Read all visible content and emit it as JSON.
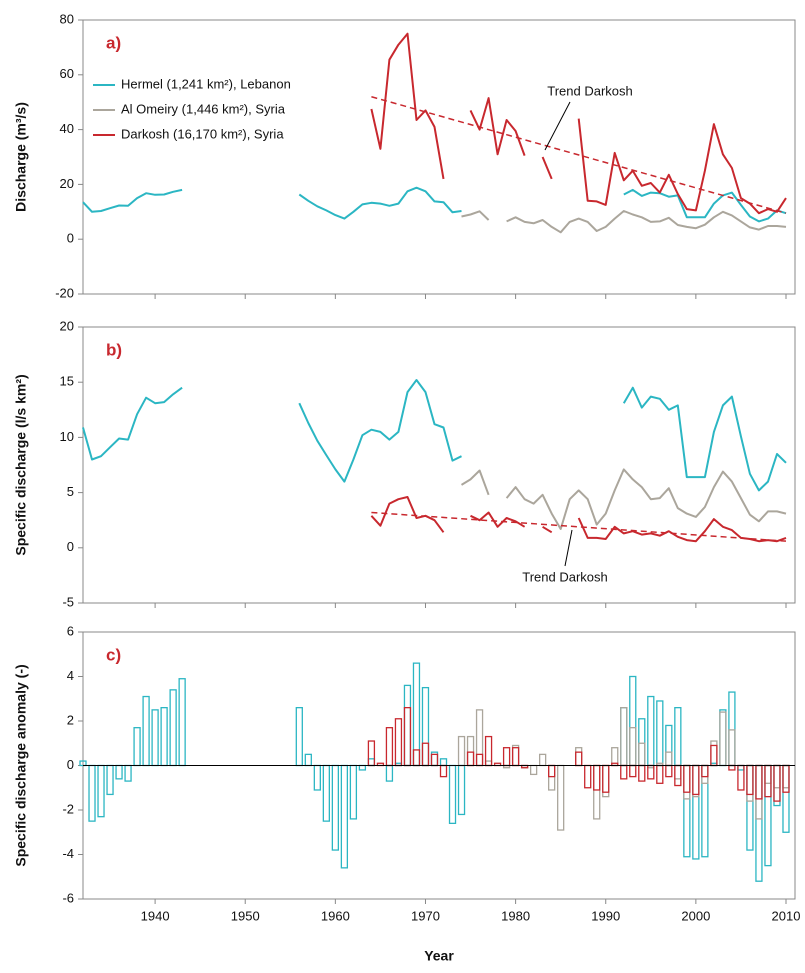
{
  "chart_data": [
    {
      "type": "line",
      "panel": "a)",
      "ylabel": "Discharge (m³/s)",
      "xlim": [
        1932,
        2011
      ],
      "xticks": [
        1940,
        1950,
        1960,
        1970,
        1980,
        1990,
        2000,
        2010
      ],
      "ylim": [
        -20,
        80
      ],
      "yticks": [
        -20,
        0,
        20,
        40,
        60,
        80
      ],
      "x": [
        1932,
        1933,
        1934,
        1935,
        1936,
        1937,
        1938,
        1939,
        1940,
        1941,
        1942,
        1943,
        1944,
        1945,
        1946,
        1947,
        1948,
        1949,
        1950,
        1951,
        1952,
        1953,
        1954,
        1955,
        1956,
        1957,
        1958,
        1959,
        1960,
        1961,
        1962,
        1963,
        1964,
        1965,
        1966,
        1967,
        1968,
        1969,
        1970,
        1971,
        1972,
        1973,
        1974,
        1975,
        1976,
        1977,
        1978,
        1979,
        1980,
        1981,
        1982,
        1983,
        1984,
        1985,
        1986,
        1987,
        1988,
        1989,
        1990,
        1991,
        1992,
        1993,
        1994,
        1995,
        1996,
        1997,
        1998,
        1999,
        2000,
        2001,
        2002,
        2003,
        2004,
        2005,
        2006,
        2007,
        2008,
        2009,
        2010
      ],
      "series": [
        {
          "name": "Hermel (1,241 km²), Lebanon",
          "color": "#2bb6c3",
          "values": [
            13.5,
            10,
            10.3,
            11.3,
            12.3,
            12.2,
            15,
            16.8,
            16.2,
            16.3,
            17.3,
            18,
            null,
            null,
            null,
            null,
            null,
            null,
            null,
            null,
            null,
            null,
            null,
            null,
            16.3,
            14,
            12,
            10.5,
            8.8,
            7.5,
            10,
            12.7,
            13.3,
            13,
            12.2,
            13,
            17.5,
            18.8,
            17.5,
            13.8,
            13.5,
            9.8,
            10.3,
            null,
            null,
            null,
            null,
            null,
            null,
            null,
            null,
            null,
            null,
            null,
            null,
            null,
            null,
            null,
            null,
            null,
            16.3,
            18,
            15.8,
            17,
            16.8,
            15.5,
            16,
            8,
            8,
            8,
            13,
            16,
            17,
            12.5,
            8.3,
            6.5,
            7.5,
            10.5,
            9.5
          ]
        },
        {
          "name": "Al Omeiry (1,446 km²), Syria",
          "color": "#aba69c",
          "values": [
            null,
            null,
            null,
            null,
            null,
            null,
            null,
            null,
            null,
            null,
            null,
            null,
            null,
            null,
            null,
            null,
            null,
            null,
            null,
            null,
            null,
            null,
            null,
            null,
            null,
            null,
            null,
            null,
            null,
            null,
            null,
            null,
            null,
            null,
            null,
            null,
            null,
            null,
            null,
            null,
            null,
            null,
            8.3,
            9,
            10.2,
            7,
            null,
            6.5,
            8,
            6.3,
            5.8,
            7,
            4.5,
            2.5,
            6.3,
            7.5,
            6.3,
            3,
            4.5,
            7.5,
            10.3,
            9,
            8,
            6.3,
            6.5,
            7.8,
            5.2,
            4.5,
            4,
            5.3,
            8,
            10,
            8.7,
            6.5,
            4.3,
            3.5,
            4.8,
            4.8,
            4.5
          ]
        },
        {
          "name": "Darkosh (16,170 km²), Syria",
          "color": "#c8282e",
          "values": [
            null,
            null,
            null,
            null,
            null,
            null,
            null,
            null,
            null,
            null,
            null,
            null,
            null,
            null,
            null,
            null,
            null,
            null,
            null,
            null,
            null,
            null,
            null,
            null,
            null,
            null,
            null,
            null,
            null,
            null,
            null,
            null,
            47.5,
            33,
            65.5,
            71,
            75,
            43.5,
            47,
            41,
            22,
            null,
            null,
            47,
            40,
            51.5,
            31,
            43.5,
            39.5,
            30.5,
            null,
            30,
            22,
            null,
            null,
            44,
            14,
            13.8,
            12.5,
            31.5,
            21.5,
            25,
            19.5,
            20.5,
            17,
            23.5,
            16.5,
            11,
            10.5,
            25,
            42,
            31,
            26,
            15,
            13,
            9.5,
            11,
            10,
            15
          ]
        }
      ],
      "trend": {
        "x": [
          1964,
          2010
        ],
        "values": [
          52,
          9.5
        ],
        "color": "#c8282e"
      },
      "annotation": "Trend Darkosh"
    },
    {
      "type": "line",
      "panel": "b)",
      "ylabel": "Specific discharge (l/s km²)",
      "xlim": [
        1932,
        2011
      ],
      "xticks": [
        1940,
        1950,
        1960,
        1970,
        1980,
        1990,
        2000,
        2010
      ],
      "ylim": [
        -5,
        20
      ],
      "yticks": [
        -5,
        0,
        5,
        10,
        15,
        20
      ],
      "x": [
        1932,
        1933,
        1934,
        1935,
        1936,
        1937,
        1938,
        1939,
        1940,
        1941,
        1942,
        1943,
        1944,
        1945,
        1946,
        1947,
        1948,
        1949,
        1950,
        1951,
        1952,
        1953,
        1954,
        1955,
        1956,
        1957,
        1958,
        1959,
        1960,
        1961,
        1962,
        1963,
        1964,
        1965,
        1966,
        1967,
        1968,
        1969,
        1970,
        1971,
        1972,
        1973,
        1974,
        1975,
        1976,
        1977,
        1978,
        1979,
        1980,
        1981,
        1982,
        1983,
        1984,
        1985,
        1986,
        1987,
        1988,
        1989,
        1990,
        1991,
        1992,
        1993,
        1994,
        1995,
        1996,
        1997,
        1998,
        1999,
        2000,
        2001,
        2002,
        2003,
        2004,
        2005,
        2006,
        2007,
        2008,
        2009,
        2010
      ],
      "series": [
        {
          "color": "#2bb6c3",
          "values": [
            10.9,
            8,
            8.3,
            9.1,
            9.9,
            9.8,
            12.1,
            13.6,
            13.1,
            13.2,
            13.9,
            14.5,
            null,
            null,
            null,
            null,
            null,
            null,
            null,
            null,
            null,
            null,
            null,
            null,
            13.1,
            11.3,
            9.7,
            8.4,
            7.1,
            6,
            8,
            10.2,
            10.7,
            10.5,
            9.8,
            10.5,
            14.1,
            15.2,
            14.1,
            11.2,
            10.9,
            7.9,
            8.3,
            null,
            null,
            null,
            null,
            null,
            null,
            null,
            null,
            null,
            null,
            null,
            null,
            null,
            null,
            null,
            null,
            null,
            13.1,
            14.5,
            12.7,
            13.7,
            13.5,
            12.5,
            12.9,
            6.4,
            6.4,
            6.4,
            10.5,
            12.9,
            13.7,
            10.1,
            6.7,
            5.2,
            6,
            8.5,
            7.7
          ]
        },
        {
          "color": "#aba69c",
          "values": [
            null,
            null,
            null,
            null,
            null,
            null,
            null,
            null,
            null,
            null,
            null,
            null,
            null,
            null,
            null,
            null,
            null,
            null,
            null,
            null,
            null,
            null,
            null,
            null,
            null,
            null,
            null,
            null,
            null,
            null,
            null,
            null,
            null,
            null,
            null,
            null,
            null,
            null,
            null,
            null,
            null,
            null,
            5.7,
            6.2,
            7,
            4.8,
            null,
            4.5,
            5.5,
            4.4,
            4,
            4.8,
            3.1,
            1.7,
            4.4,
            5.2,
            4.4,
            2.1,
            3.1,
            5.2,
            7.1,
            6.2,
            5.5,
            4.4,
            4.5,
            5.4,
            3.6,
            3.1,
            2.8,
            3.7,
            5.5,
            6.9,
            6,
            4.5,
            3,
            2.4,
            3.3,
            3.3,
            3.1
          ]
        },
        {
          "color": "#c8282e",
          "values": [
            null,
            null,
            null,
            null,
            null,
            null,
            null,
            null,
            null,
            null,
            null,
            null,
            null,
            null,
            null,
            null,
            null,
            null,
            null,
            null,
            null,
            null,
            null,
            null,
            null,
            null,
            null,
            null,
            null,
            null,
            null,
            null,
            2.9,
            2,
            4,
            4.4,
            4.6,
            2.7,
            2.9,
            2.5,
            1.4,
            null,
            null,
            2.9,
            2.5,
            3.2,
            1.9,
            2.7,
            2.4,
            1.9,
            null,
            1.9,
            1.4,
            null,
            null,
            2.7,
            0.9,
            0.9,
            0.8,
            1.9,
            1.3,
            1.5,
            1.2,
            1.3,
            1.1,
            1.5,
            1,
            0.7,
            0.6,
            1.5,
            2.6,
            1.9,
            1.6,
            0.9,
            0.8,
            0.6,
            0.7,
            0.6,
            0.9
          ]
        }
      ],
      "trend": {
        "x": [
          1964,
          2010
        ],
        "values": [
          3.2,
          0.6
        ],
        "color": "#c8282e"
      },
      "annotation": "Trend Darkosh"
    },
    {
      "type": "bar",
      "panel": "c)",
      "ylabel": "Specific discharge anomaly (-)",
      "xlabel": "Year",
      "xlim": [
        1932,
        2011
      ],
      "xticks": [
        1940,
        1950,
        1960,
        1970,
        1980,
        1990,
        2000,
        2010
      ],
      "ylim": [
        -6,
        6
      ],
      "yticks": [
        -6,
        -4,
        -2,
        0,
        2,
        4,
        6
      ],
      "x": [
        1932,
        1933,
        1934,
        1935,
        1936,
        1937,
        1938,
        1939,
        1940,
        1941,
        1942,
        1943,
        1944,
        1945,
        1946,
        1947,
        1948,
        1949,
        1950,
        1951,
        1952,
        1953,
        1954,
        1955,
        1956,
        1957,
        1958,
        1959,
        1960,
        1961,
        1962,
        1963,
        1964,
        1965,
        1966,
        1967,
        1968,
        1969,
        1970,
        1971,
        1972,
        1973,
        1974,
        1975,
        1976,
        1977,
        1978,
        1979,
        1980,
        1981,
        1982,
        1983,
        1984,
        1985,
        1986,
        1987,
        1988,
        1989,
        1990,
        1991,
        1992,
        1993,
        1994,
        1995,
        1996,
        1997,
        1998,
        1999,
        2000,
        2001,
        2002,
        2003,
        2004,
        2005,
        2006,
        2007,
        2008,
        2009,
        2010
      ],
      "series": [
        {
          "color": "#2bb6c3",
          "values": [
            0.2,
            -2.5,
            -2.3,
            -1.3,
            -0.6,
            -0.7,
            1.7,
            3.1,
            2.5,
            2.6,
            3.4,
            3.9,
            null,
            null,
            null,
            null,
            null,
            null,
            null,
            null,
            null,
            null,
            null,
            null,
            2.6,
            0.5,
            -1.1,
            -2.5,
            -3.8,
            -4.6,
            -2.4,
            -0.2,
            0.3,
            0,
            -0.7,
            0.1,
            3.6,
            4.6,
            3.5,
            0.6,
            0.3,
            -2.6,
            -2.2,
            null,
            null,
            null,
            null,
            null,
            null,
            null,
            null,
            null,
            null,
            null,
            null,
            null,
            null,
            null,
            null,
            null,
            2.6,
            4,
            2.1,
            3.1,
            2.9,
            1.8,
            2.6,
            -4.1,
            -4.2,
            -4.1,
            0.1,
            2.5,
            3.3,
            -0.2,
            -3.8,
            -5.2,
            -4.5,
            -1.8,
            -3
          ]
        },
        {
          "color": "#aba69c",
          "values": [
            null,
            null,
            null,
            null,
            null,
            null,
            null,
            null,
            null,
            null,
            null,
            null,
            null,
            null,
            null,
            null,
            null,
            null,
            null,
            null,
            null,
            null,
            null,
            null,
            null,
            null,
            null,
            null,
            null,
            null,
            null,
            null,
            null,
            null,
            null,
            null,
            null,
            null,
            null,
            null,
            null,
            null,
            1.3,
            1.3,
            2.5,
            0.2,
            null,
            -0.1,
            0.9,
            -0.1,
            -0.4,
            0.5,
            -1.1,
            -2.9,
            0,
            0.8,
            0,
            -2.4,
            -1.4,
            0.8,
            2.6,
            1.7,
            1,
            -0.1,
            0.1,
            0.6,
            -0.6,
            -1.5,
            -1.4,
            -0.8,
            1.1,
            2.4,
            1.6,
            0,
            -1.6,
            -2.4,
            -0.8,
            -1,
            -1
          ]
        },
        {
          "color": "#c8282e",
          "values": [
            null,
            null,
            null,
            null,
            null,
            null,
            null,
            null,
            null,
            null,
            null,
            null,
            null,
            null,
            null,
            null,
            null,
            null,
            null,
            null,
            null,
            null,
            null,
            null,
            null,
            null,
            null,
            null,
            null,
            null,
            null,
            null,
            1.1,
            0.1,
            1.7,
            2.1,
            2.6,
            0.7,
            1,
            0.5,
            -0.5,
            null,
            null,
            0.6,
            0.5,
            1.3,
            0.1,
            0.8,
            0.8,
            -0.1,
            null,
            0,
            -0.5,
            null,
            null,
            0.6,
            -1,
            -1.1,
            -1.2,
            0.1,
            -0.6,
            -0.5,
            -0.7,
            -0.6,
            -0.8,
            -0.5,
            -0.9,
            -1.2,
            -1.3,
            -0.5,
            0.9,
            0,
            -0.2,
            -1.1,
            -1.3,
            -1.5,
            -1.4,
            -1.6,
            -1.2
          ]
        }
      ]
    }
  ]
}
